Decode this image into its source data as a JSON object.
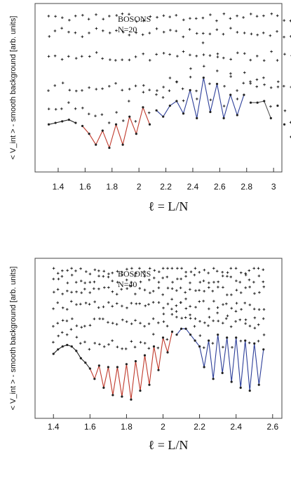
{
  "chart_data": [
    {
      "type": "scatter",
      "annotation": [
        "BOSONS",
        "N=20"
      ],
      "xlabel": "ℓ = L/N",
      "ylabel": "< V_int > - smooth background [arb. units]",
      "xlim": [
        1.27,
        3.02
      ],
      "ylim": [
        0,
        1
      ],
      "x_ticks": [
        "1.4",
        "1.6",
        "1.8",
        "2",
        "2.2",
        "2.4",
        "2.6",
        "2.8",
        "3"
      ],
      "x_tick_values": [
        1.4,
        1.6,
        1.8,
        2.0,
        2.2,
        2.4,
        2.6,
        2.8,
        3.0
      ],
      "x_start": 1.33,
      "x_step": 0.05,
      "lowest_branch": [
        0.26,
        0.27,
        0.28,
        0.29,
        0.27,
        0.25,
        0.2,
        0.13,
        0.22,
        0.11,
        0.26,
        0.13,
        0.31,
        0.2,
        0.37,
        0.26,
        0.35,
        0.31,
        0.38,
        0.41,
        0.33,
        0.48,
        0.3,
        0.56,
        0.34,
        0.52,
        0.3,
        0.45,
        0.32,
        0.45,
        0.4,
        0.4,
        0.41,
        0.3,
        0.38,
        0.26,
        0.18
      ],
      "color_segments": [
        {
          "from": 1.33,
          "to": 1.55,
          "color": "#222222"
        },
        {
          "from": 1.55,
          "to": 2.1,
          "color": "#c0392b"
        },
        {
          "from": 2.1,
          "to": 2.8,
          "color": "#2c3e99"
        },
        {
          "from": 2.8,
          "to": 3.0,
          "color": "#555555"
        }
      ],
      "excited_levels": [
        0.3,
        0.5,
        0.7,
        0.85,
        0.95
      ],
      "colors": {
        "low_left": "#222222",
        "mid": "#c0392b",
        "right": "#2c3e99"
      }
    },
    {
      "type": "scatter",
      "annotation": [
        "BOSONS",
        "N=40"
      ],
      "xlabel": "ℓ = L/N",
      "ylabel": "< V_int > - smooth background [arb. units]",
      "xlim": [
        1.33,
        2.62
      ],
      "ylim": [
        0,
        1
      ],
      "x_ticks": [
        "1.4",
        "1.6",
        "1.8",
        "2",
        "2.2",
        "2.4",
        "2.6"
      ],
      "x_tick_values": [
        1.4,
        1.6,
        1.8,
        2.0,
        2.2,
        2.4,
        2.6
      ],
      "x_start": 1.4,
      "x_step": 0.025,
      "lowest_branch": [
        0.39,
        0.42,
        0.44,
        0.45,
        0.44,
        0.41,
        0.36,
        0.33,
        0.29,
        0.22,
        0.31,
        0.16,
        0.3,
        0.11,
        0.3,
        0.1,
        0.32,
        0.08,
        0.34,
        0.14,
        0.38,
        0.18,
        0.44,
        0.28,
        0.5,
        0.4,
        0.54,
        0.52,
        0.56,
        0.56,
        0.52,
        0.48,
        0.44,
        0.3,
        0.48,
        0.22,
        0.52,
        0.26,
        0.5,
        0.2,
        0.5,
        0.16,
        0.48,
        0.14,
        0.46,
        0.18,
        0.42
      ],
      "color_segments": [
        {
          "from": 1.4,
          "to": 1.6,
          "color": "#222222"
        },
        {
          "from": 1.6,
          "to": 2.07,
          "color": "#c0392b"
        },
        {
          "from": 2.07,
          "to": 2.55,
          "color": "#2c3e99"
        }
      ],
      "excited_levels": [
        0.45,
        0.6,
        0.72,
        0.82,
        0.9,
        0.96
      ],
      "colors": {
        "low_left": "#222222",
        "mid": "#c0392b",
        "right": "#2c3e99"
      }
    }
  ]
}
